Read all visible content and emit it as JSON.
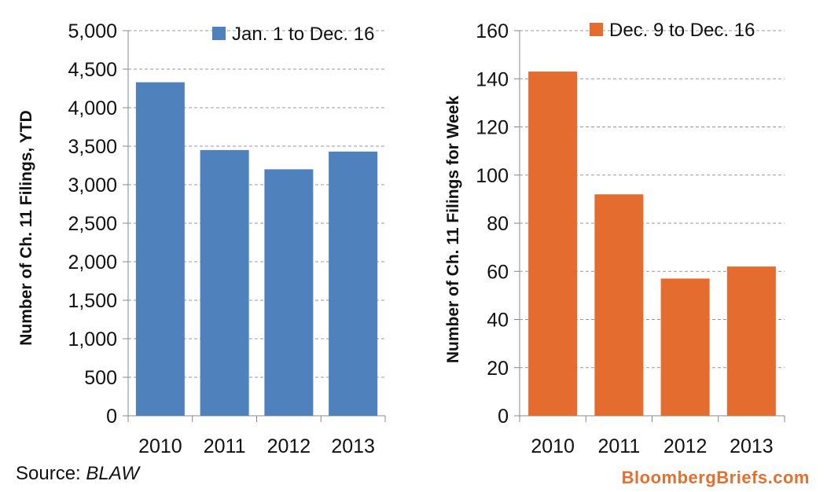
{
  "source": {
    "prefix": "Source:",
    "name": "BLAW"
  },
  "brand": "BloombergBriefs.com",
  "chart_data": [
    {
      "type": "bar",
      "categories": [
        "2010",
        "2011",
        "2012",
        "2013"
      ],
      "series": [
        {
          "name": "Jan. 1 to Dec. 16",
          "values": [
            4330,
            3450,
            3200,
            3430
          ],
          "color": "#4f81bd"
        }
      ],
      "ylabel": "Number of Ch. 11 Filings, YTD",
      "ylim": [
        0,
        5000
      ],
      "yticks": [
        0,
        500,
        1000,
        1500,
        2000,
        2500,
        3000,
        3500,
        4000,
        4500,
        5000
      ],
      "ytick_labels": [
        "0",
        "500",
        "1,000",
        "1,500",
        "2,000",
        "2,500",
        "3,000",
        "3,500",
        "4,000",
        "4,500",
        "5,000"
      ],
      "grid": "dashed horizontal",
      "legend": "top-right"
    },
    {
      "type": "bar",
      "categories": [
        "2010",
        "2011",
        "2012",
        "2013"
      ],
      "series": [
        {
          "name": "Dec. 9 to Dec. 16",
          "values": [
            143,
            92,
            57,
            62
          ],
          "color": "#e46c2f"
        }
      ],
      "ylabel": "Number of Ch. 11 Filings for Week",
      "ylim": [
        0,
        160
      ],
      "yticks": [
        0,
        20,
        40,
        60,
        80,
        100,
        120,
        140,
        160
      ],
      "ytick_labels": [
        "0",
        "20",
        "40",
        "60",
        "80",
        "100",
        "120",
        "140",
        "160"
      ],
      "grid": "dashed horizontal",
      "legend": "top-right"
    }
  ]
}
